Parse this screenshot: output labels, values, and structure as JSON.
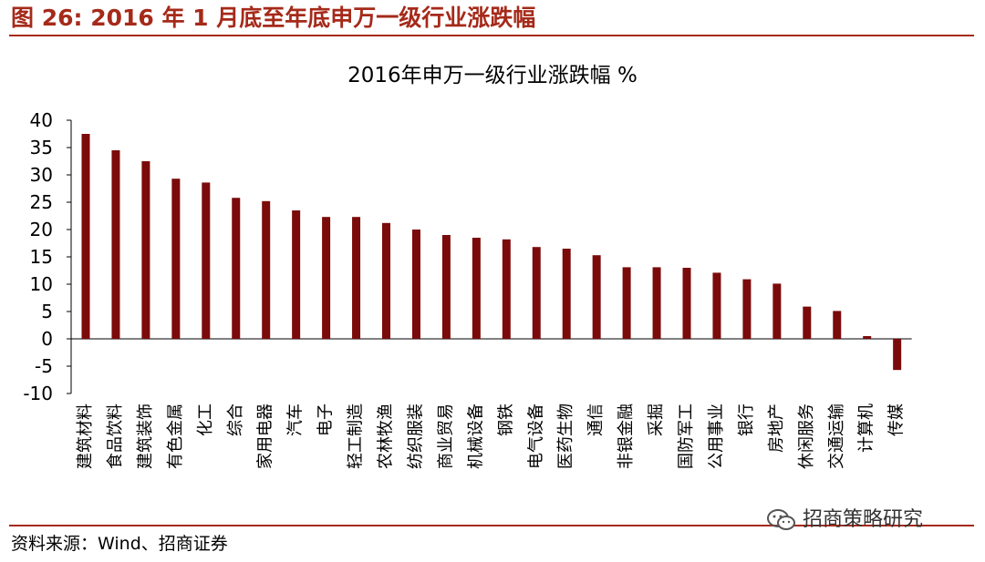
{
  "figure": {
    "title": "图 26:  2016 年 1 月底至年底申万一级行业涨跌幅",
    "source": "资料来源：Wind、招商证券",
    "watermark": "招商策略研究",
    "watermark_icon": "wechat-icon"
  },
  "colors": {
    "accent": "#a52a1a",
    "bar": "#7b0a0a",
    "axis": "#000000"
  },
  "chart_data": {
    "type": "bar",
    "title": "2016年申万一级行业涨跌幅 %",
    "xlabel": "",
    "ylabel": "",
    "ylim": [
      -10,
      40
    ],
    "yticks": [
      "40",
      "35",
      "30",
      "25",
      "20",
      "15",
      "10",
      "5",
      "0",
      "-5",
      "-10"
    ],
    "grid": false,
    "categories": [
      "建筑材料",
      "食品饮料",
      "建筑装饰",
      "有色金属",
      "化工",
      "综合",
      "家用电器",
      "汽车",
      "电子",
      "轻工制造",
      "农林牧渔",
      "纺织服装",
      "商业贸易",
      "机械设备",
      "钢铁",
      "电气设备",
      "医药生物",
      "通信",
      "非银金融",
      "采掘",
      "国防军工",
      "公用事业",
      "银行",
      "房地产",
      "休闲服务",
      "交通运输",
      "计算机",
      "传媒"
    ],
    "values": [
      37.5,
      34.5,
      32.5,
      29.3,
      28.6,
      25.8,
      25.2,
      23.5,
      22.3,
      22.3,
      21.2,
      20.0,
      19.0,
      18.5,
      18.2,
      16.8,
      16.5,
      15.3,
      13.1,
      13.1,
      13.0,
      12.1,
      10.9,
      10.1,
      5.9,
      5.1,
      0.5,
      -5.7
    ]
  }
}
